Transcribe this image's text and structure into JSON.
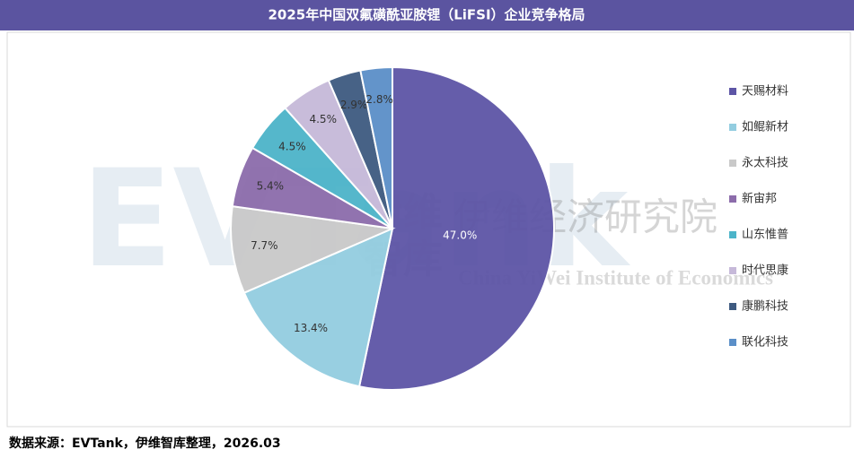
{
  "chart_data": {
    "type": "pie",
    "title": "2025年中国双氟磺酰亚胺锂（LiFSI）企业竞争格局",
    "categories": [
      "天赐材料",
      "如鲲新材",
      "永太科技",
      "新宙邦",
      "山东惟普",
      "时代思康",
      "康鹏科技",
      "联化科技"
    ],
    "values": [
      47.0,
      13.4,
      7.7,
      5.4,
      4.5,
      4.5,
      2.9,
      2.8
    ],
    "value_labels": [
      "47.0%",
      "13.4%",
      "7.7%",
      "5.4%",
      "4.5%",
      "4.5%",
      "2.9%",
      "2.8%"
    ],
    "colors": [
      "#5d55a6",
      "#93cde0",
      "#c9c9c9",
      "#8c6cab",
      "#4cb4c9",
      "#c6b9d9",
      "#3e5a80",
      "#5b8fc8"
    ],
    "legend": "right"
  },
  "source": "数据来源：EVTank，伊维智库整理，2026.03",
  "watermark": {
    "brand": "EVTank",
    "short": [
      "伊维",
      "智库"
    ],
    "name": "伊维经济研究院",
    "english": "China YiWei Institute of Economics"
  }
}
